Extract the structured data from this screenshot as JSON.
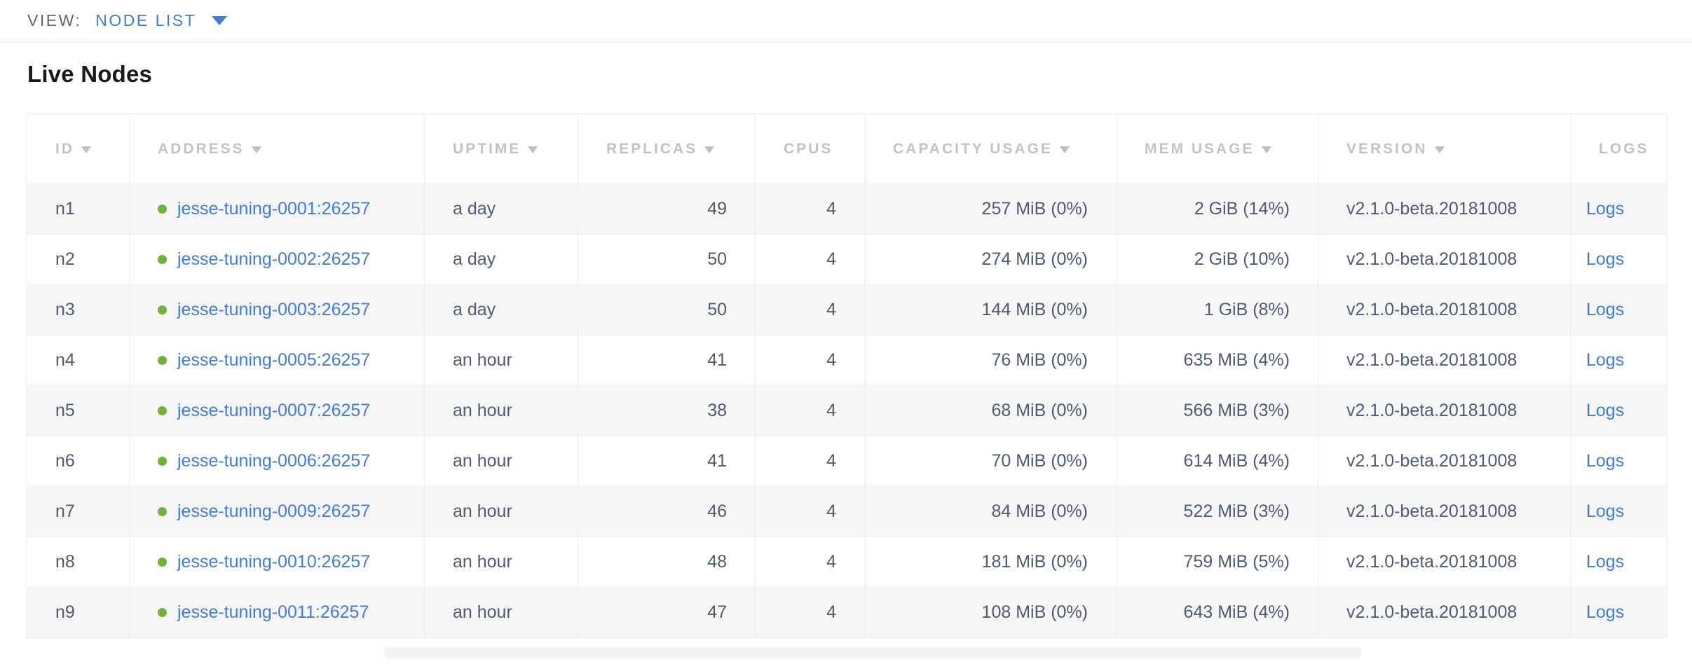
{
  "toolbar": {
    "view_label": "VIEW:",
    "view_value": "NODE LIST",
    "dropdown_icon": "triangle-down"
  },
  "page": {
    "title": "Live Nodes"
  },
  "colors": {
    "link_blue": "#3e7ce2",
    "status_green": "#71b23c",
    "header_gray": "#c3c3c7",
    "cell_text": "#4e5b73",
    "row_stripe": "#f6f6f7"
  },
  "table": {
    "columns": [
      {
        "label": "ID",
        "sorted": true
      },
      {
        "label": "ADDRESS",
        "sorted": true
      },
      {
        "label": "UPTIME",
        "sorted": true
      },
      {
        "label": "REPLICAS",
        "sorted": true
      },
      {
        "label": "CPUS",
        "sorted": false
      },
      {
        "label": "CAPACITY USAGE",
        "sorted": true
      },
      {
        "label": "MEM USAGE",
        "sorted": true
      },
      {
        "label": "VERSION",
        "sorted": true
      },
      {
        "label": "LOGS",
        "sorted": false
      }
    ],
    "sort_icon": "triangle-down",
    "status_icon": "green-dot",
    "logs_label": "Logs",
    "rows": [
      {
        "id": "n1",
        "address": "jesse-tuning-0001:26257",
        "uptime": "a day",
        "replicas": "49",
        "cpus": "4",
        "capacity": "257 MiB (0%)",
        "mem": "2 GiB (14%)",
        "version": "v2.1.0-beta.20181008"
      },
      {
        "id": "n2",
        "address": "jesse-tuning-0002:26257",
        "uptime": "a day",
        "replicas": "50",
        "cpus": "4",
        "capacity": "274 MiB (0%)",
        "mem": "2 GiB (10%)",
        "version": "v2.1.0-beta.20181008"
      },
      {
        "id": "n3",
        "address": "jesse-tuning-0003:26257",
        "uptime": "a day",
        "replicas": "50",
        "cpus": "4",
        "capacity": "144 MiB (0%)",
        "mem": "1 GiB (8%)",
        "version": "v2.1.0-beta.20181008"
      },
      {
        "id": "n4",
        "address": "jesse-tuning-0005:26257",
        "uptime": "an hour",
        "replicas": "41",
        "cpus": "4",
        "capacity": "76 MiB (0%)",
        "mem": "635 MiB (4%)",
        "version": "v2.1.0-beta.20181008"
      },
      {
        "id": "n5",
        "address": "jesse-tuning-0007:26257",
        "uptime": "an hour",
        "replicas": "38",
        "cpus": "4",
        "capacity": "68 MiB (0%)",
        "mem": "566 MiB (3%)",
        "version": "v2.1.0-beta.20181008"
      },
      {
        "id": "n6",
        "address": "jesse-tuning-0006:26257",
        "uptime": "an hour",
        "replicas": "41",
        "cpus": "4",
        "capacity": "70 MiB (0%)",
        "mem": "614 MiB (4%)",
        "version": "v2.1.0-beta.20181008"
      },
      {
        "id": "n7",
        "address": "jesse-tuning-0009:26257",
        "uptime": "an hour",
        "replicas": "46",
        "cpus": "4",
        "capacity": "84 MiB (0%)",
        "mem": "522 MiB (3%)",
        "version": "v2.1.0-beta.20181008"
      },
      {
        "id": "n8",
        "address": "jesse-tuning-0010:26257",
        "uptime": "an hour",
        "replicas": "48",
        "cpus": "4",
        "capacity": "181 MiB (0%)",
        "mem": "759 MiB (5%)",
        "version": "v2.1.0-beta.20181008"
      },
      {
        "id": "n9",
        "address": "jesse-tuning-0011:26257",
        "uptime": "an hour",
        "replicas": "47",
        "cpus": "4",
        "capacity": "108 MiB (0%)",
        "mem": "643 MiB (4%)",
        "version": "v2.1.0-beta.20181008"
      }
    ]
  }
}
